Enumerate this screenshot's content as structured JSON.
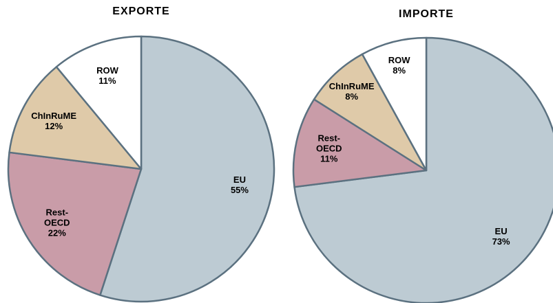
{
  "chart_data": [
    {
      "type": "pie",
      "title": "EXPORTE",
      "categories": [
        "EU",
        "Rest-OECD",
        "ChInRuME",
        "ROW"
      ],
      "values": [
        55,
        22,
        12,
        11
      ],
      "value_labels": [
        "55%",
        "22%",
        "12%",
        "11%"
      ],
      "colors": [
        "#bdcbd3",
        "#c99ca8",
        "#dfcaa9",
        "#ffffff"
      ]
    },
    {
      "type": "pie",
      "title": "IMPORTE",
      "categories": [
        "EU",
        "Rest-OECD",
        "ChInRuME",
        "ROW"
      ],
      "values": [
        73,
        11,
        8,
        8
      ],
      "value_labels": [
        "73%",
        "11%",
        "8%",
        "8%"
      ],
      "colors": [
        "#bdcbd3",
        "#c99ca8",
        "#dfcaa9",
        "#ffffff"
      ]
    }
  ]
}
